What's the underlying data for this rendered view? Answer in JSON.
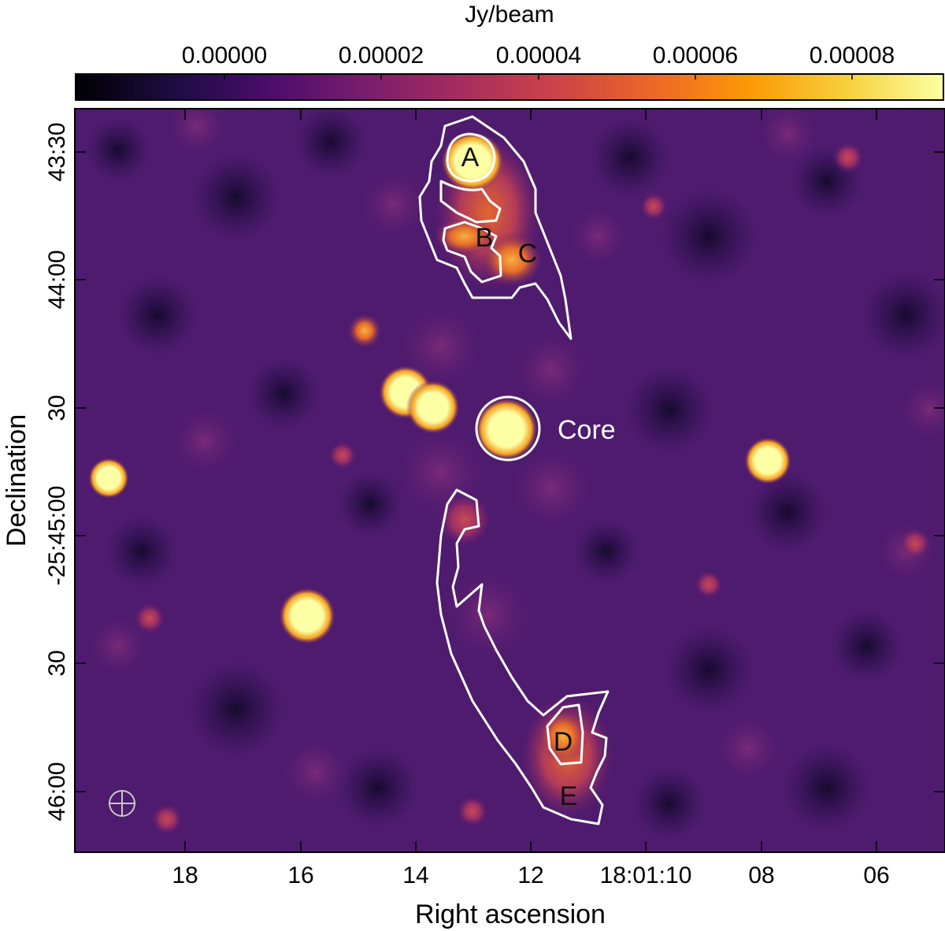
{
  "colorbar": {
    "title": "Jy/beam",
    "tick_labels": [
      "0.00000",
      "0.00002",
      "0.00004",
      "0.00006",
      "0.00008"
    ],
    "tick_values": [
      0.0,
      2e-05,
      4e-05,
      6e-05,
      8e-05
    ],
    "colormap": "inferno",
    "colors": [
      "#000004",
      "#1b0c41",
      "#4a0c6b",
      "#781c6d",
      "#a52c60",
      "#cf4446",
      "#ed6925",
      "#fb9b06",
      "#f7d13d",
      "#fcffa4"
    ]
  },
  "axes": {
    "xlabel": "Right ascension",
    "ylabel": "Declination",
    "x_tick_labels": [
      "18",
      "16",
      "14",
      "12",
      "18:01:10",
      "08",
      "06"
    ],
    "y_tick_labels": [
      "43:30",
      "44:00",
      "30",
      "-25:45:00",
      "30",
      "46:00"
    ]
  },
  "regions": {
    "labels": [
      "A",
      "B",
      "C",
      "D",
      "E",
      "Core"
    ]
  },
  "colors": {
    "image_background": "#4a1a6b",
    "contour": "#ffffff",
    "bright_source": "#fcffa4",
    "frame": "#000000"
  }
}
